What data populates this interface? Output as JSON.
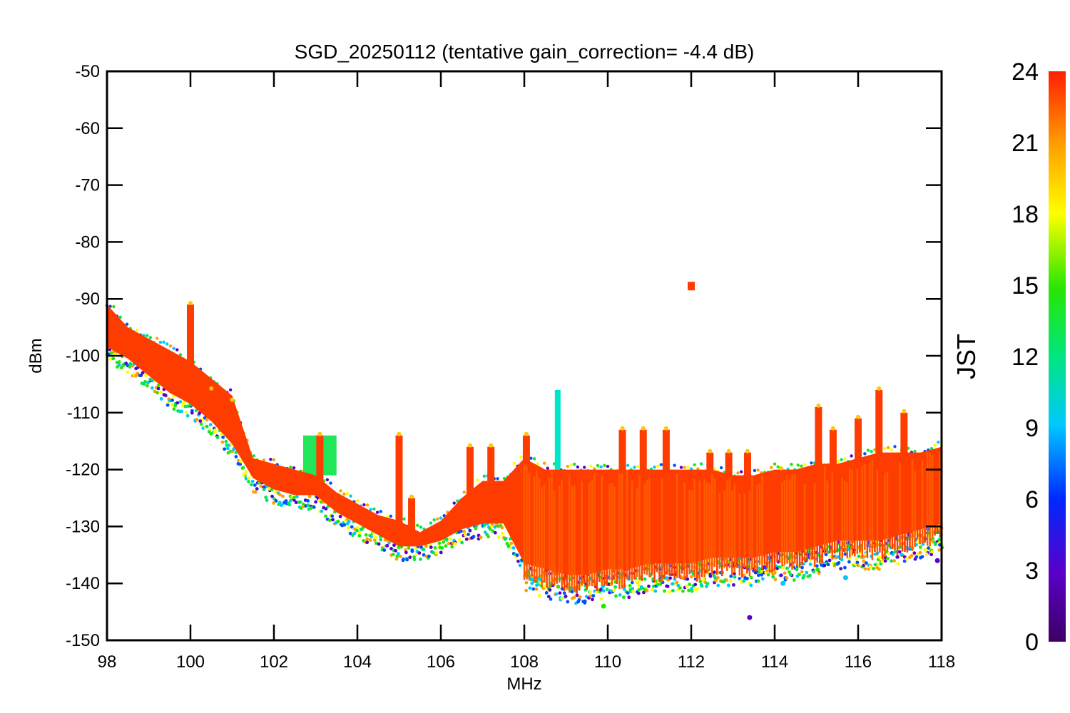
{
  "chart_data": {
    "type": "scatter",
    "title": "SGD_20250112 (tentative gain_correction= -4.4 dB)",
    "xlabel": "MHz",
    "ylabel": "dBm",
    "xlim": [
      98,
      118
    ],
    "ylim": [
      -150,
      -50
    ],
    "x_ticks": [
      "98",
      "100",
      "102",
      "104",
      "106",
      "108",
      "110",
      "112",
      "114",
      "116",
      "118"
    ],
    "y_ticks": [
      "-50",
      "-60",
      "-70",
      "-80",
      "-90",
      "-100",
      "-110",
      "-120",
      "-130",
      "-140",
      "-150"
    ],
    "grid": false,
    "marker": "asterisk",
    "colorbar": {
      "label": "JST",
      "range": [
        0,
        24
      ],
      "ticks": [
        "0",
        "3",
        "6",
        "9",
        "12",
        "15",
        "18",
        "21",
        "24"
      ],
      "colormap": "rainbow (purple-blue-cyan-green-yellow-orange-red)"
    },
    "series": [
      {
        "description_of": "noise floor envelope",
        "x": [
          98,
          98.5,
          99,
          99.5,
          100,
          100.5,
          101,
          101.5,
          102,
          102.5,
          103,
          103.5,
          104,
          104.5,
          105,
          105.5,
          106,
          106.5,
          107,
          107.5,
          108,
          108.5,
          109,
          109.5,
          110,
          110.5,
          111,
          111.5,
          112,
          112.5,
          113,
          113.5,
          114,
          114.5,
          115,
          115.5,
          116,
          116.5,
          117,
          117.5,
          118
        ],
        "y_upper": [
          -91,
          -95,
          -97,
          -99,
          -101,
          -104,
          -107,
          -118,
          -119,
          -120,
          -121,
          -124,
          -126,
          -128,
          -129,
          -131,
          -129,
          -125,
          -122,
          -122,
          -118,
          -120,
          -120,
          -120,
          -120,
          -120,
          -120,
          -120,
          -120,
          -120,
          -121,
          -121,
          -120,
          -120,
          -119,
          -119,
          -118,
          -117,
          -117,
          -117,
          -116
        ],
        "y_lower": [
          -100,
          -102,
          -105,
          -108,
          -110,
          -113,
          -117,
          -123,
          -125,
          -126,
          -126,
          -129,
          -131,
          -133,
          -135,
          -135,
          -134,
          -132,
          -131,
          -131,
          -138,
          -139,
          -140,
          -140,
          -139,
          -139,
          -138,
          -138,
          -138,
          -137,
          -137,
          -137,
          -136,
          -136,
          -135,
          -134,
          -134,
          -134,
          -133,
          -132,
          -131
        ]
      }
    ],
    "spikes": [
      {
        "x": 100.0,
        "y_top": -91
      },
      {
        "x": 100.5,
        "y_top": -106
      },
      {
        "x": 101.0,
        "y_top": -108
      },
      {
        "x": 103.1,
        "y_top": -114
      },
      {
        "x": 105.0,
        "y_top": -114
      },
      {
        "x": 105.3,
        "y_top": -125
      },
      {
        "x": 106.7,
        "y_top": -116
      },
      {
        "x": 107.2,
        "y_top": -116
      },
      {
        "x": 108.05,
        "y_top": -114
      },
      {
        "x": 108.8,
        "y_top": -106
      },
      {
        "x": 110.35,
        "y_top": -113
      },
      {
        "x": 110.85,
        "y_top": -113
      },
      {
        "x": 111.4,
        "y_top": -113
      },
      {
        "x": 112.0,
        "y_top": -87
      },
      {
        "x": 112.45,
        "y_top": -117
      },
      {
        "x": 112.9,
        "y_top": -117
      },
      {
        "x": 113.35,
        "y_top": -117
      },
      {
        "x": 114.15,
        "y_top": -120
      },
      {
        "x": 115.05,
        "y_top": -109
      },
      {
        "x": 115.4,
        "y_top": -113
      },
      {
        "x": 116.0,
        "y_top": -111
      },
      {
        "x": 116.5,
        "y_top": -106
      },
      {
        "x": 117.1,
        "y_top": -110
      }
    ],
    "green_cluster": {
      "x_range": [
        102.7,
        103.5
      ],
      "y_range": [
        -121,
        -114
      ]
    },
    "outliers": [
      {
        "x": 109.9,
        "y": -144
      },
      {
        "x": 113.4,
        "y": -146
      },
      {
        "x": 114.2,
        "y": -140
      },
      {
        "x": 115.7,
        "y": -139
      },
      {
        "x": 117.9,
        "y": -136
      }
    ]
  }
}
